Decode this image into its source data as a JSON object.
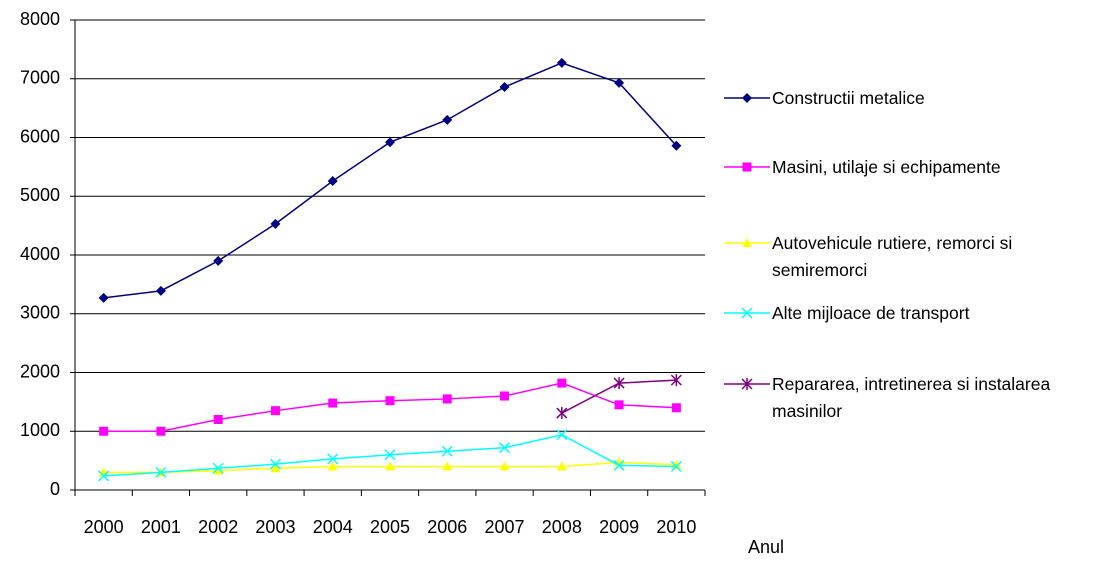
{
  "chart_data": {
    "type": "line",
    "categories": [
      "2000",
      "2001",
      "2002",
      "2003",
      "2004",
      "2005",
      "2006",
      "2007",
      "2008",
      "2009",
      "2010"
    ],
    "x_label": "Anul",
    "ylim": [
      0,
      8000
    ],
    "yticks": [
      0,
      1000,
      2000,
      3000,
      4000,
      5000,
      6000,
      7000,
      8000
    ],
    "grid": true,
    "legend": "right",
    "series": [
      {
        "name": "Constructii metalice",
        "color": "#000080",
        "marker": "diamond",
        "values": [
          3270,
          3390,
          3900,
          4530,
          5260,
          5920,
          6300,
          6860,
          7270,
          6930,
          5860
        ]
      },
      {
        "name": "Masini, utilaje si echipamente",
        "color": "#ff00ff",
        "marker": "square",
        "values": [
          1000,
          1000,
          1200,
          1350,
          1480,
          1520,
          1550,
          1600,
          1820,
          1450,
          1400
        ]
      },
      {
        "name": "Autovehicule rutiere, remorci si semiremorci",
        "color": "#ffff00",
        "marker": "triangle",
        "values": [
          300,
          300,
          330,
          370,
          400,
          400,
          400,
          400,
          400,
          470,
          430
        ]
      },
      {
        "name": "Alte mijloace de transport",
        "color": "#00ffff",
        "marker": "x",
        "values": [
          240,
          300,
          370,
          440,
          530,
          600,
          660,
          720,
          940,
          420,
          400
        ]
      },
      {
        "name": "Repararea, intretinerea si instalarea masinilor",
        "color": "#800080",
        "marker": "asterisk",
        "values": [
          null,
          null,
          null,
          null,
          null,
          null,
          null,
          null,
          1310,
          1820,
          1870
        ]
      }
    ]
  }
}
